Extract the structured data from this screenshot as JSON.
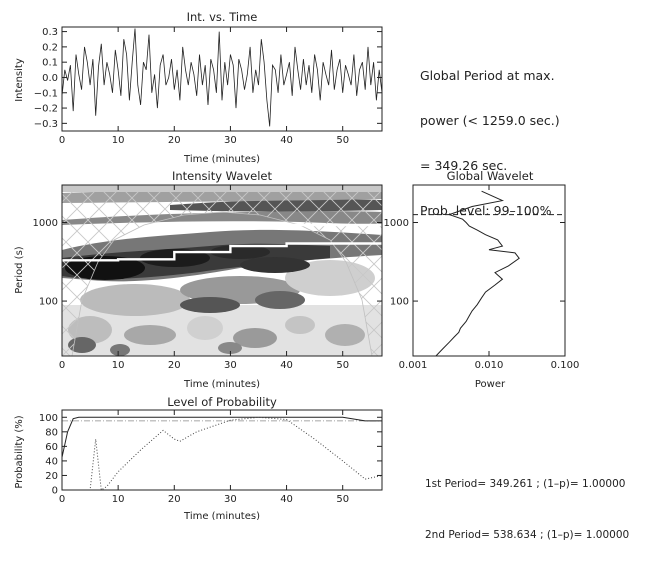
{
  "annotation": {
    "line1": "Global Period at max.",
    "line2": "power (< 1259.0 sec.)",
    "line3": "= 349.26 sec.",
    "line4": "Prob. level: 99–100%"
  },
  "periods": {
    "first": "1st Period= 349.261 ; (1–p)= 1.00000",
    "second": "2nd Period= 538.634 ; (1–p)= 1.00000"
  },
  "chart_data": [
    {
      "type": "line",
      "title": "Int. vs. Time",
      "xlabel": "Time (minutes)",
      "ylabel": "Intensity",
      "xlim": [
        0,
        57
      ],
      "ylim": [
        -0.35,
        0.33
      ],
      "xticks": [
        0,
        10,
        20,
        30,
        40,
        50
      ],
      "yticks": [
        -0.3,
        -0.2,
        -0.1,
        0.0,
        0.1,
        0.2,
        0.3
      ],
      "ytick_labels": [
        "−0.3",
        "−0.2",
        "−0.1",
        "0.0",
        "0.1",
        "0.2",
        "0.3"
      ],
      "series": [
        {
          "x": [
            0,
            0.5,
            1,
            1.5,
            2,
            2.5,
            3,
            3.5,
            4,
            4.5,
            5,
            5.5,
            6,
            6.5,
            7,
            7.5,
            8,
            8.5,
            9,
            9.5,
            10,
            10.5,
            11,
            11.5,
            12,
            12.5,
            13,
            13.5,
            14,
            14.5,
            15,
            15.5,
            16,
            16.5,
            17,
            17.5,
            18,
            18.5,
            19,
            19.5,
            20,
            20.5,
            21,
            21.5,
            22,
            22.5,
            23,
            23.5,
            24,
            24.5,
            25,
            25.5,
            26,
            26.5,
            27,
            27.5,
            28,
            28.5,
            29,
            29.5,
            30,
            30.5,
            31,
            31.5,
            32,
            32.5,
            33,
            33.5,
            34,
            34.5,
            35,
            35.5,
            36,
            36.5,
            37,
            37.5,
            38,
            38.5,
            39,
            39.5,
            40,
            40.5,
            41,
            41.5,
            42,
            42.5,
            43,
            43.5,
            44,
            44.5,
            45,
            45.5,
            46,
            46.5,
            47,
            47.5,
            48,
            48.5,
            49,
            49.5,
            50,
            50.5,
            51,
            51.5,
            52,
            52.5,
            53,
            53.5,
            54,
            54.5,
            55,
            55.5,
            56,
            56.5,
            57
          ],
          "y": [
            -0.12,
            0.05,
            -0.02,
            0.08,
            -0.22,
            0.15,
            0.02,
            -0.08,
            0.2,
            0.1,
            -0.05,
            0.12,
            -0.25,
            0.07,
            0.22,
            -0.05,
            0.1,
            0.02,
            -0.1,
            0.18,
            0.05,
            -0.12,
            0.25,
            0.15,
            -0.15,
            0.1,
            0.32,
            -0.05,
            -0.18,
            0.1,
            0.05,
            0.28,
            -0.1,
            0.02,
            -0.2,
            0.08,
            0.15,
            -0.05,
            0.0,
            0.12,
            -0.08,
            0.05,
            -0.15,
            0.2,
            0.05,
            -0.05,
            0.1,
            0.02,
            -0.12,
            0.15,
            -0.05,
            0.08,
            -0.18,
            0.12,
            0.05,
            -0.1,
            0.3,
            -0.15,
            0.1,
            -0.05,
            0.15,
            0.08,
            -0.2,
            0.12,
            0.05,
            -0.08,
            0.02,
            0.2,
            -0.1,
            0.05,
            -0.05,
            0.25,
            0.1,
            -0.15,
            -0.32,
            0.08,
            0.05,
            -0.1,
            0.15,
            -0.05,
            0.02,
            0.1,
            -0.12,
            0.2,
            0.05,
            -0.08,
            0.12,
            -0.05,
            0.08,
            -0.1,
            0.15,
            0.05,
            -0.15,
            0.1,
            0.02,
            -0.05,
            0.18,
            -0.08,
            0.05,
            0.12,
            -0.1,
            0.08,
            0.02,
            -0.05,
            0.15,
            -0.12,
            0.05,
            0.1,
            -0.08,
            0.2,
            -0.05,
            0.1,
            -0.15,
            0.05,
            -0.1
          ]
        }
      ]
    },
    {
      "type": "heatmap",
      "title": "Intensity Wavelet",
      "xlabel": "Time (minutes)",
      "ylabel": "Period (s)",
      "xlim": [
        0,
        57
      ],
      "ylim": [
        20,
        3000
      ],
      "yscale": "log",
      "xticks": [
        0,
        10,
        20,
        30,
        40,
        50
      ],
      "yticks": [
        100,
        1000
      ],
      "ytick_labels": [
        "100",
        "1000"
      ],
      "colormap": "grayscale (white = low power, black = high power)",
      "cone_of_influence": "hatched",
      "ridges": [
        {
          "name": "1st Period",
          "x": [
            0,
            10,
            20,
            30,
            40,
            57
          ],
          "y": [
            330,
            340,
            420,
            500,
            540,
            550
          ],
          "color": "#ffffff"
        },
        {
          "name": "2nd Period",
          "x": [
            40,
            57
          ],
          "y": [
            930,
            930
          ],
          "color": "#ffffff"
        }
      ]
    },
    {
      "type": "line",
      "title": "Global Wavelet",
      "xlabel": "Power",
      "xscale": "log",
      "yscale": "log",
      "xlim": [
        0.001,
        0.1
      ],
      "ylim": [
        20,
        3000
      ],
      "xticks": [
        0.001,
        0.01,
        0.1
      ],
      "xtick_labels": [
        "0.001",
        "0.010",
        "0.100"
      ],
      "threshold_period": 1259,
      "series": [
        {
          "x": [
            0.002,
            0.0025,
            0.003,
            0.0035,
            0.004,
            0.0042,
            0.005,
            0.0055,
            0.006,
            0.007,
            0.008,
            0.009,
            0.012,
            0.015,
            0.012,
            0.018,
            0.025,
            0.022,
            0.01,
            0.015,
            0.013,
            0.009,
            0.007,
            0.0055,
            0.005,
            0.0045,
            0.0035,
            0.003,
            0.006,
            0.015,
            0.008
          ],
          "y": [
            20,
            25,
            30,
            35,
            40,
            45,
            55,
            65,
            75,
            90,
            110,
            130,
            160,
            190,
            230,
            280,
            350,
            410,
            450,
            500,
            600,
            700,
            800,
            900,
            1000,
            1100,
            1200,
            1259,
            1600,
            1900,
            2500
          ]
        }
      ]
    },
    {
      "type": "line",
      "title": "Level of Probability",
      "xlabel": "Time (minutes)",
      "ylabel": "Probability (%)",
      "xlim": [
        0,
        57
      ],
      "ylim": [
        0,
        110
      ],
      "xticks": [
        0,
        10,
        20,
        30,
        40,
        50
      ],
      "yticks": [
        0,
        20,
        40,
        60,
        80,
        100
      ],
      "reference_level": 95,
      "series": [
        {
          "x": [
            0,
            1,
            2,
            3,
            10,
            20,
            30,
            40,
            50,
            54,
            55,
            57
          ],
          "y": [
            45,
            80,
            98,
            100,
            100,
            100,
            100,
            100,
            100,
            95,
            95,
            95
          ]
        },
        {
          "x": [
            0,
            4,
            5,
            6,
            7,
            8,
            10,
            14,
            18,
            20,
            21,
            24,
            30,
            35,
            40,
            45,
            50,
            54,
            57
          ],
          "y": [
            0,
            0,
            0,
            70,
            0,
            5,
            25,
            55,
            82,
            70,
            67,
            80,
            96,
            100,
            97,
            70,
            40,
            15,
            20
          ]
        }
      ]
    }
  ]
}
